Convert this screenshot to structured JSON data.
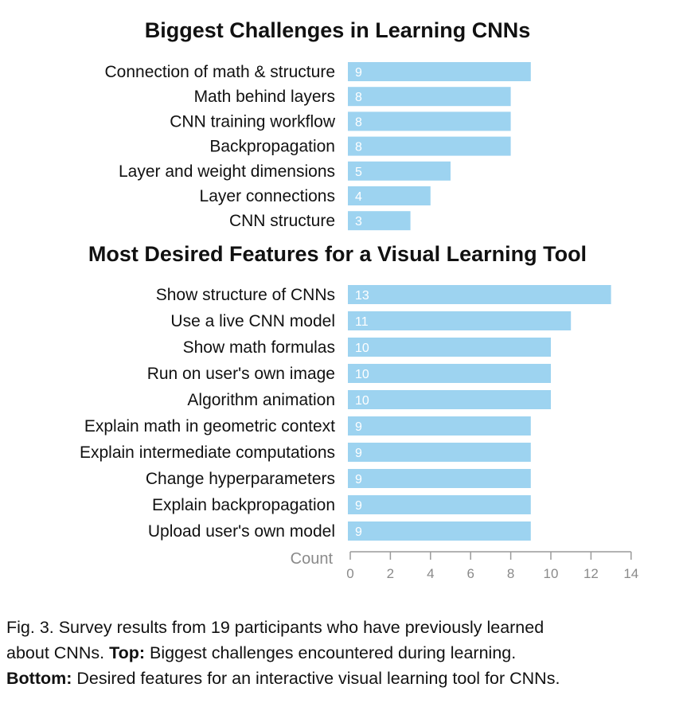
{
  "chart_data": [
    {
      "type": "bar",
      "orientation": "horizontal",
      "title": "Biggest Challenges in Learning CNNs",
      "categories": [
        "Connection of math & structure",
        "Math behind layers",
        "CNN training workflow",
        "Backpropagation",
        "Layer and weight dimensions",
        "Layer connections",
        "CNN structure"
      ],
      "values": [
        9,
        8,
        8,
        8,
        5,
        4,
        3
      ],
      "color": "#9dd3f0",
      "xlim": [
        0,
        14
      ]
    },
    {
      "type": "bar",
      "orientation": "horizontal",
      "title": "Most Desired Features for a Visual Learning Tool",
      "categories": [
        "Show structure of CNNs",
        "Use a live CNN model",
        "Show math formulas",
        "Run on user's own image",
        "Algorithm animation",
        "Explain math in geometric context",
        "Explain intermediate computations",
        "Change hyperparameters",
        "Explain backpropagation",
        "Upload user's own model"
      ],
      "values": [
        13,
        11,
        10,
        10,
        10,
        9,
        9,
        9,
        9,
        9
      ],
      "color": "#9dd3f0",
      "xlim": [
        0,
        14
      ],
      "xlabel": "Count",
      "xticks": [
        0,
        2,
        4,
        6,
        8,
        10,
        12,
        14
      ]
    }
  ],
  "caption": {
    "line1": "Fig. 3. Survey results from 19 participants who have previously learned",
    "line2_pre": "about CNNs.",
    "line2_bold": "Top:",
    "line2_post": "Biggest challenges encountered during learning.",
    "line3_bold": "Bottom:",
    "line3_post": "Desired features for an interactive visual learning tool for CNNs."
  }
}
